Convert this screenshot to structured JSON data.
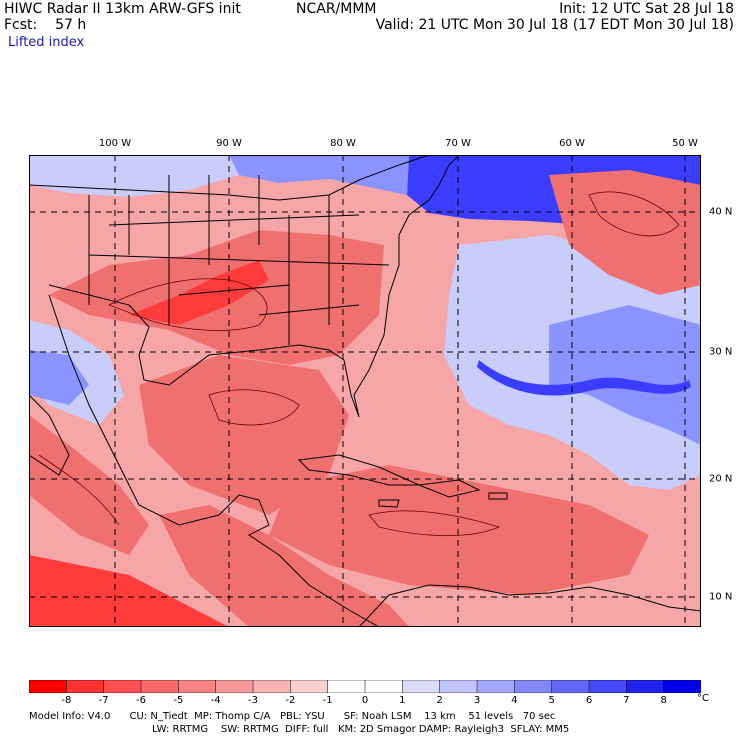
{
  "header": {
    "model_title": "HIWC Radar II 13km ARW-GFS init",
    "center": "NCAR/MMM",
    "init_time": "Init: 12 UTC Sat 28 Jul 18",
    "forecast_label": "Fcst:",
    "forecast_hours": "57 h",
    "valid_time": "Valid: 21 UTC Mon 30 Jul 18 (17 EDT Mon 30 Jul 18)",
    "field_name": "Lifted index"
  },
  "map": {
    "lon_labels": [
      "100 W",
      "90 W",
      "80 W",
      "70 W",
      "60 W",
      "50 W"
    ],
    "lat_labels": [
      "40 N",
      "30 N",
      "20 N",
      "10 N"
    ],
    "colors": {
      "strong_unstable": "#ff3b3b",
      "unstable": "#f07070",
      "mild_unstable": "#f6a6a6",
      "neutral": "#ffffff",
      "mild_stable": "#c8cdfa",
      "stable": "#8a93ff",
      "strong_stable": "#3a3dff",
      "land_outline": "#000000",
      "contour": "#6b0000"
    }
  },
  "colorbar": {
    "tick_labels": [
      "-8",
      "-7",
      "-6",
      "-5",
      "-4",
      "-3",
      "-2",
      "-1",
      "0",
      "1",
      "2",
      "3",
      "4",
      "5",
      "6",
      "7",
      "8"
    ],
    "unit": "°C",
    "colors": [
      "#ff0000",
      "#ff3232",
      "#ff5050",
      "#f86868",
      "#f68282",
      "#f69a9a",
      "#f8b4b4",
      "#fad0d0",
      "#ffffff",
      "#ffffff",
      "#dcdcfa",
      "#c0c4fa",
      "#a2a8fa",
      "#8288fa",
      "#6468fa",
      "#4448fa",
      "#2222f0",
      "#0000e8"
    ]
  },
  "footer": {
    "line1": "Model Info: V4.0      CU: N_Tiedt  MP: Thomp C/A   PBL: YSU      SF: Noah LSM    13 km    51 levels   70 sec",
    "line2": "LW: RRTMG    SW: RRTMG  DIFF: full   KM: 2D Smagor DAMP: Rayleigh3  SFLAY: MM5"
  }
}
